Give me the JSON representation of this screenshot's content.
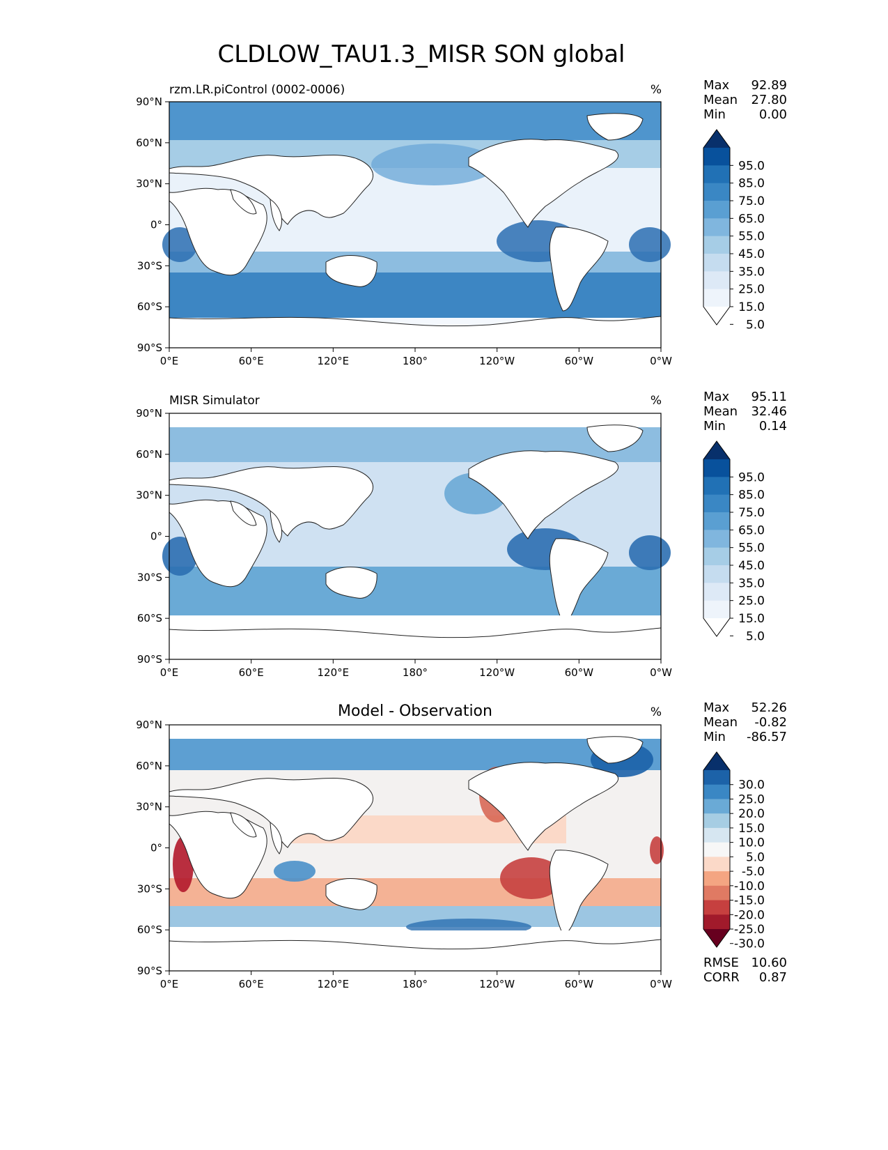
{
  "title": "CLDLOW_TAU1.3_MISR SON global",
  "longitude_ticks": [
    "0°E",
    "60°E",
    "120°E",
    "180°",
    "120°W",
    "60°W",
    "0°W"
  ],
  "latitude_ticks": [
    "90°N",
    "60°N",
    "30°N",
    "0°",
    "30°S",
    "60°S",
    "90°S"
  ],
  "panels": [
    {
      "id": "model",
      "title_left": "rzm.LR.piControl (0002-0006)",
      "title_center": "",
      "units": "%",
      "stats": [
        {
          "label": "Max",
          "value": "92.89"
        },
        {
          "label": "Mean",
          "value": "27.80"
        },
        {
          "label": "Min",
          "value": "0.00"
        }
      ],
      "colorbar_labels": [
        "95.0",
        "85.0",
        "75.0",
        "65.0",
        "55.0",
        "45.0",
        "35.0",
        "25.0",
        "15.0",
        "5.0"
      ],
      "colorbar_colors": [
        "#08306b",
        "#08519c",
        "#2171b5",
        "#3a87c4",
        "#5a9fd2",
        "#80b6de",
        "#a6cde6",
        "#c5dcef",
        "#dde9f6",
        "#eef4fb",
        "#ffffff"
      ]
    },
    {
      "id": "obs",
      "title_left": "MISR Simulator",
      "title_center": "",
      "units": "%",
      "stats": [
        {
          "label": "Max",
          "value": "95.11"
        },
        {
          "label": "Mean",
          "value": "32.46"
        },
        {
          "label": "Min",
          "value": "0.14"
        }
      ],
      "colorbar_labels": [
        "95.0",
        "85.0",
        "75.0",
        "65.0",
        "55.0",
        "45.0",
        "35.0",
        "25.0",
        "15.0",
        "5.0"
      ],
      "colorbar_colors": [
        "#08306b",
        "#08519c",
        "#2171b5",
        "#3a87c4",
        "#5a9fd2",
        "#80b6de",
        "#a6cde6",
        "#c5dcef",
        "#dde9f6",
        "#eef4fb",
        "#ffffff"
      ]
    },
    {
      "id": "diff",
      "title_left": "",
      "title_center": "Model - Observation",
      "units": "%",
      "stats": [
        {
          "label": "Max",
          "value": "52.26"
        },
        {
          "label": "Mean",
          "value": "-0.82"
        },
        {
          "label": "Min",
          "value": "-86.57"
        }
      ],
      "colorbar_labels": [
        "30.0",
        "25.0",
        "20.0",
        "15.0",
        "10.0",
        "5.0",
        "-5.0",
        "-10.0",
        "-15.0",
        "-20.0",
        "-25.0",
        "-30.0"
      ],
      "colorbar_colors": [
        "#08306b",
        "#1c62a8",
        "#3a87c4",
        "#6aaad6",
        "#a6cde3",
        "#d6e6f1",
        "#f7f7f7",
        "#fbd9c8",
        "#f4a582",
        "#e07a63",
        "#c6403f",
        "#a11a2b",
        "#67001f"
      ],
      "footer_stats": [
        {
          "label": "RMSE",
          "value": "10.60"
        },
        {
          "label": "CORR",
          "value": "0.87"
        }
      ]
    }
  ]
}
